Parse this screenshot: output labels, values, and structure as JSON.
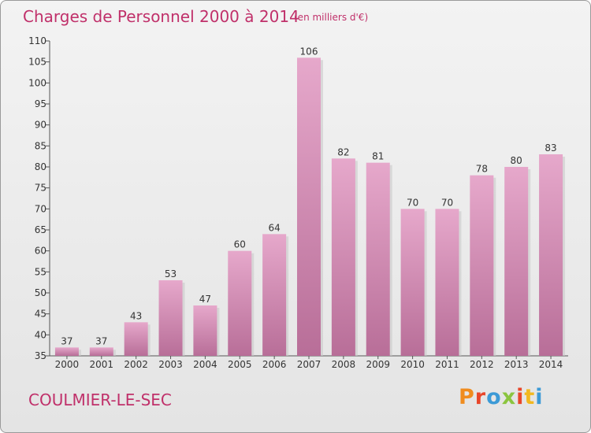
{
  "header": {
    "title": "Charges de Personnel 2000 à 2014",
    "subtitle": "(en milliers d'€)"
  },
  "footer": {
    "commune": "COULMIER-LE-SEC",
    "logo": "Proxiti",
    "logo_colors": [
      "#f08c1e",
      "#e8462a",
      "#3c9ad6",
      "#8bc53f",
      "#e8462a",
      "#f2b820",
      "#3c9ad6"
    ]
  },
  "chart_data": {
    "type": "bar",
    "title": "Charges de Personnel 2000 à 2014",
    "subtitle": "(en milliers d'€)",
    "categories": [
      "2000",
      "2001",
      "2002",
      "2003",
      "2004",
      "2005",
      "2006",
      "2007",
      "2008",
      "2009",
      "2010",
      "2011",
      "2012",
      "2013",
      "2014"
    ],
    "values": [
      37,
      37,
      43,
      53,
      47,
      60,
      64,
      106,
      82,
      81,
      70,
      70,
      78,
      80,
      83
    ],
    "ylim": [
      35,
      110
    ],
    "yticks": [
      35,
      40,
      45,
      50,
      55,
      60,
      65,
      70,
      75,
      80,
      85,
      90,
      95,
      100,
      105,
      110
    ],
    "grid": false,
    "bar_color_top": "#e6a8cb",
    "bar_color_bottom": "#b86e98"
  }
}
